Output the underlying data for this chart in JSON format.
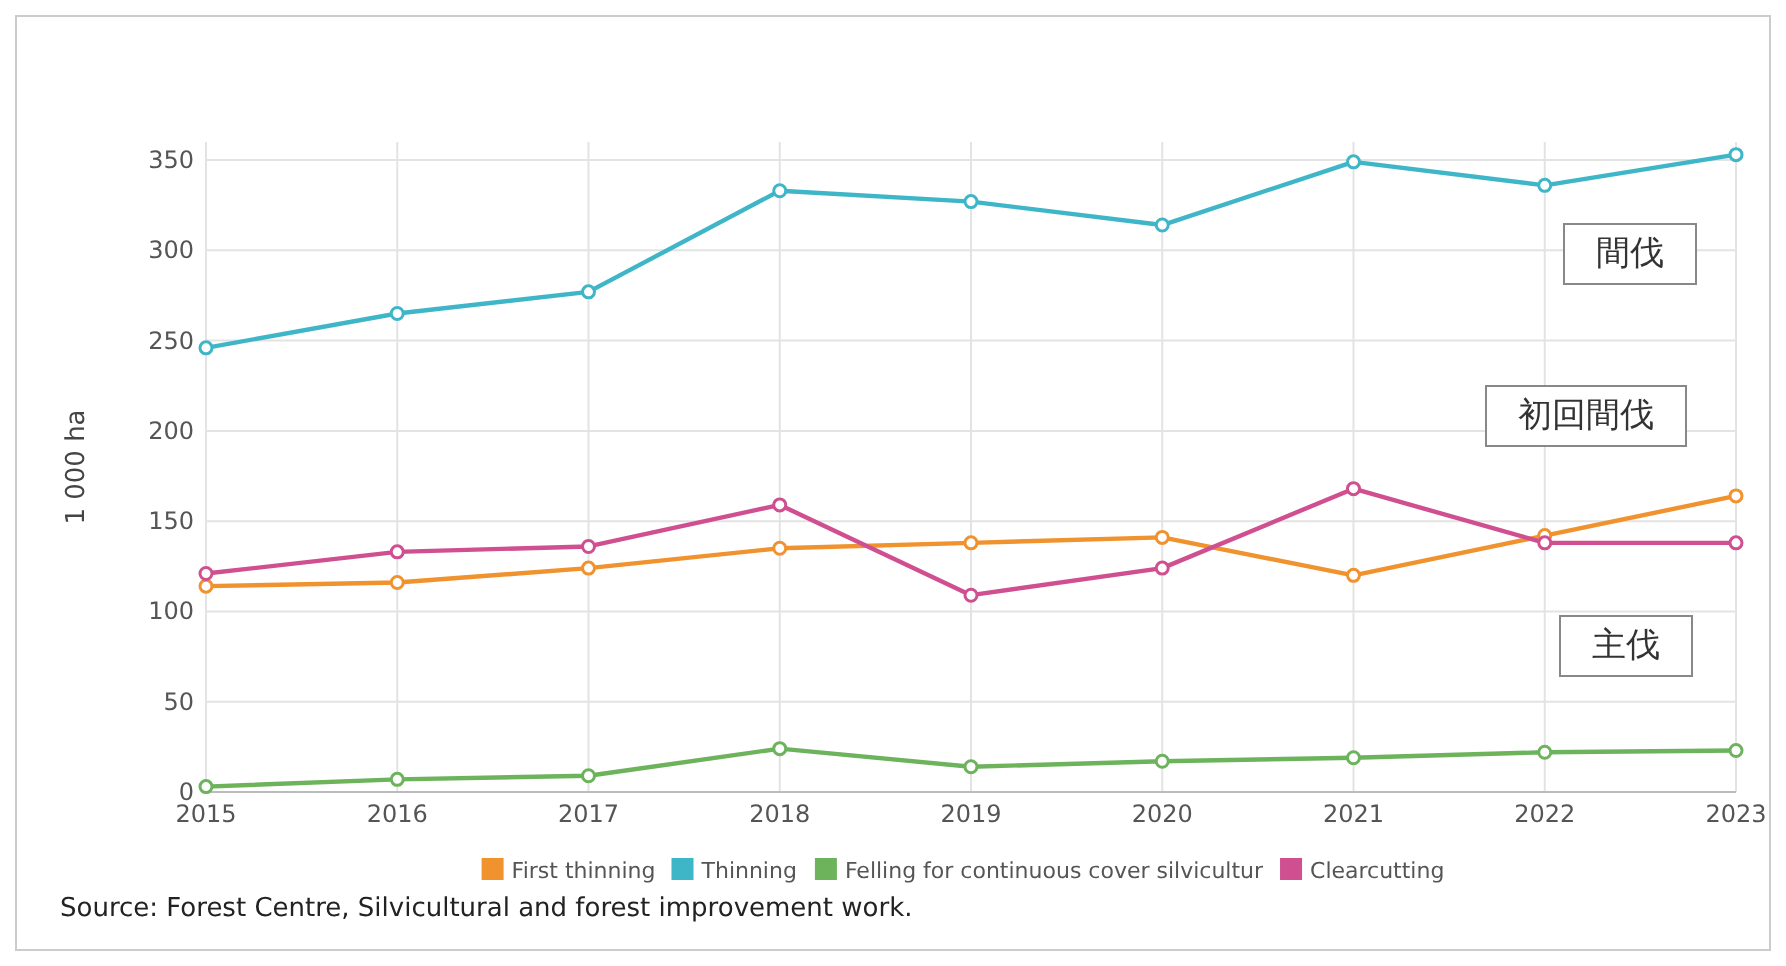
{
  "chart_data": {
    "type": "line",
    "ylabel": "1 000 ha",
    "x": [
      2015,
      2016,
      2017,
      2018,
      2019,
      2020,
      2021,
      2022,
      2023
    ],
    "series": [
      {
        "name": "First thinning",
        "color": "#f0922e",
        "values": [
          114,
          116,
          124,
          135,
          138,
          141,
          120,
          142,
          164
        ]
      },
      {
        "name": "Thinning",
        "color": "#3fb6c8",
        "values": [
          246,
          265,
          277,
          333,
          327,
          314,
          349,
          336,
          353
        ]
      },
      {
        "name": "Felling for continuous cover silvicultur",
        "color": "#6cb35c",
        "values": [
          3,
          7,
          9,
          24,
          14,
          17,
          19,
          22,
          23
        ]
      },
      {
        "name": "Clearcutting",
        "color": "#cf4f90",
        "values": [
          121,
          133,
          136,
          159,
          109,
          124,
          168,
          138,
          138
        ]
      }
    ],
    "xlim": [
      2015,
      2023
    ],
    "xticks": [
      2015,
      2016,
      2017,
      2018,
      2019,
      2020,
      2021,
      2022,
      2023
    ],
    "ylim": [
      0,
      360
    ],
    "yticks": [
      0,
      50,
      100,
      150,
      200,
      250,
      300,
      350
    ],
    "grid": true,
    "legend": "bottom",
    "marker": "circle",
    "line_style": "solid",
    "annotations": [
      "間伐",
      "初回間伐",
      "主伐",
      "Source: Forest Centre, Silvicultural and forest improvement work."
    ]
  }
}
